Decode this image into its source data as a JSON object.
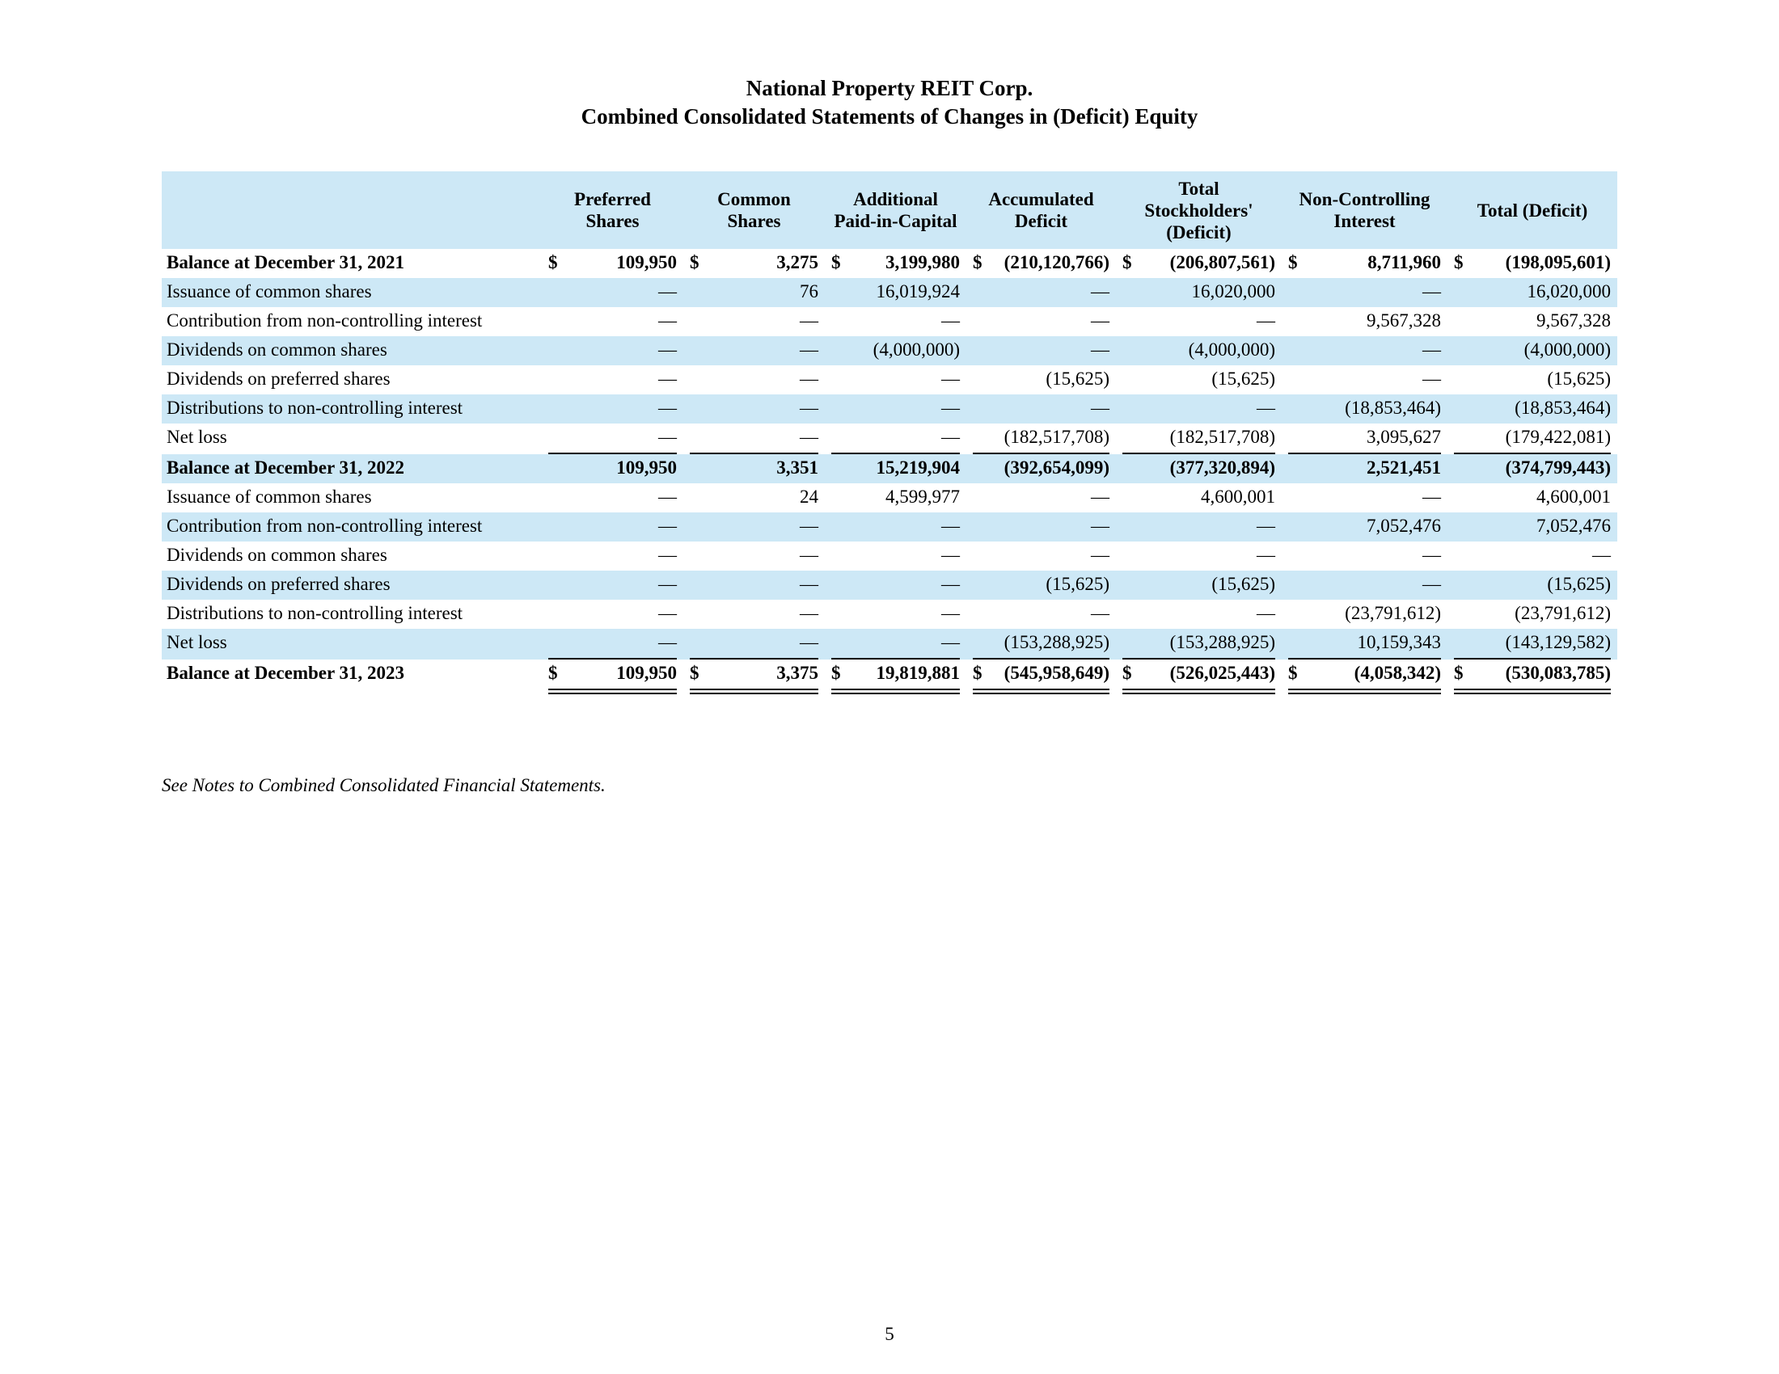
{
  "page": {
    "title_line1": "National Property REIT Corp.",
    "title_line2": "Combined Consolidated Statements of Changes in (Deficit) Equity",
    "footnote": "See Notes to Combined Consolidated Financial Statements.",
    "page_number": "5"
  },
  "table": {
    "header": [
      "Preferred Shares",
      "Common Shares",
      "Additional Paid-in-Capital",
      "Accumulated Deficit",
      "Total Stockholders' (Deficit)",
      "Non-Controlling Interest",
      "Total (Deficit)"
    ],
    "rows": [
      {
        "label": "Balance at December 31, 2021",
        "bold": true,
        "dollar": true,
        "underline": "none",
        "values": [
          "109,950",
          "3,275",
          "3,199,980",
          "(210,120,766)",
          "(206,807,561)",
          "8,711,960",
          "(198,095,601)"
        ]
      },
      {
        "label": "Issuance of common shares",
        "bold": false,
        "dollar": false,
        "underline": "none",
        "values": [
          "—",
          "76",
          "16,019,924",
          "—",
          "16,020,000",
          "—",
          "16,020,000"
        ]
      },
      {
        "label": "Contribution from non-controlling interest",
        "bold": false,
        "dollar": false,
        "underline": "none",
        "values": [
          "—",
          "—",
          "—",
          "—",
          "—",
          "9,567,328",
          "9,567,328"
        ]
      },
      {
        "label": "Dividends on common shares",
        "bold": false,
        "dollar": false,
        "underline": "none",
        "values": [
          "—",
          "—",
          "(4,000,000)",
          "—",
          "(4,000,000)",
          "—",
          "(4,000,000)"
        ]
      },
      {
        "label": "Dividends on preferred shares",
        "bold": false,
        "dollar": false,
        "underline": "none",
        "values": [
          "—",
          "—",
          "—",
          "(15,625)",
          "(15,625)",
          "—",
          "(15,625)"
        ]
      },
      {
        "label": "Distributions to non-controlling interest",
        "bold": false,
        "dollar": false,
        "underline": "none",
        "values": [
          "—",
          "—",
          "—",
          "—",
          "—",
          "(18,853,464)",
          "(18,853,464)"
        ]
      },
      {
        "label": "Net loss",
        "bold": false,
        "dollar": false,
        "underline": "single",
        "values": [
          "—",
          "—",
          "—",
          "(182,517,708)",
          "(182,517,708)",
          "3,095,627",
          "(179,422,081)"
        ]
      },
      {
        "label": "Balance at December 31, 2022",
        "bold": true,
        "dollar": false,
        "underline": "none",
        "values": [
          "109,950",
          "3,351",
          "15,219,904",
          "(392,654,099)",
          "(377,320,894)",
          "2,521,451",
          "(374,799,443)"
        ]
      },
      {
        "label": "Issuance of common shares",
        "bold": false,
        "dollar": false,
        "underline": "none",
        "values": [
          "—",
          "24",
          "4,599,977",
          "—",
          "4,600,001",
          "—",
          "4,600,001"
        ]
      },
      {
        "label": "Contribution from non-controlling interest",
        "bold": false,
        "dollar": false,
        "underline": "none",
        "values": [
          "—",
          "—",
          "—",
          "—",
          "—",
          "7,052,476",
          "7,052,476"
        ]
      },
      {
        "label": "Dividends on common shares",
        "bold": false,
        "dollar": false,
        "underline": "none",
        "values": [
          "—",
          "—",
          "—",
          "—",
          "—",
          "—",
          "—"
        ]
      },
      {
        "label": "Dividends on preferred shares",
        "bold": false,
        "dollar": false,
        "underline": "none",
        "values": [
          "—",
          "—",
          "—",
          "(15,625)",
          "(15,625)",
          "—",
          "(15,625)"
        ]
      },
      {
        "label": "Distributions to non-controlling interest",
        "bold": false,
        "dollar": false,
        "underline": "none",
        "values": [
          "—",
          "—",
          "—",
          "—",
          "—",
          "(23,791,612)",
          "(23,791,612)"
        ]
      },
      {
        "label": "Net loss",
        "bold": false,
        "dollar": false,
        "underline": "single",
        "values": [
          "—",
          "—",
          "—",
          "(153,288,925)",
          "(153,288,925)",
          "10,159,343",
          "(143,129,582)"
        ]
      },
      {
        "label": "Balance at December 31, 2023",
        "bold": true,
        "dollar": true,
        "underline": "double",
        "values": [
          "109,950",
          "3,375",
          "19,819,881",
          "(545,958,649)",
          "(526,025,443)",
          "(4,058,342)",
          "(530,083,785)"
        ]
      }
    ]
  }
}
